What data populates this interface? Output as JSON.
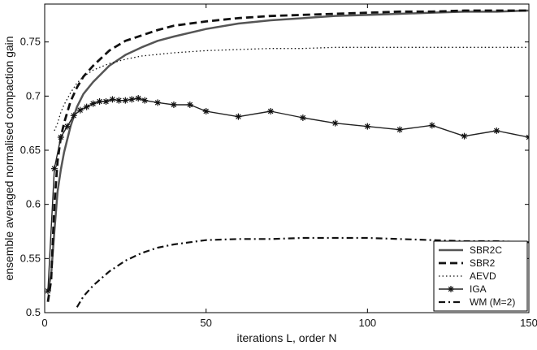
{
  "chart_data": {
    "type": "line",
    "title": "",
    "xlabel": "iterations L, order N",
    "ylabel": "ensemble averaged normalised compaction gain",
    "xlim": [
      0,
      150
    ],
    "ylim": [
      0.5,
      0.785
    ],
    "xticks": [
      0,
      50,
      100,
      150
    ],
    "yticks": [
      0.5,
      0.55,
      0.6,
      0.65,
      0.7,
      0.75
    ],
    "grid": false,
    "legend_position": "bottom-right",
    "series": [
      {
        "name": "SBR2C",
        "style": "solid",
        "x": [
          1,
          2,
          3,
          4,
          5,
          6,
          8,
          10,
          12,
          15,
          20,
          25,
          30,
          35,
          40,
          50,
          60,
          70,
          80,
          90,
          100,
          110,
          120,
          130,
          140,
          150
        ],
        "y": [
          0.52,
          0.535,
          0.575,
          0.612,
          0.632,
          0.648,
          0.672,
          0.69,
          0.702,
          0.713,
          0.728,
          0.738,
          0.745,
          0.751,
          0.755,
          0.762,
          0.767,
          0.77,
          0.772,
          0.774,
          0.775,
          0.776,
          0.777,
          0.778,
          0.778,
          0.779
        ]
      },
      {
        "name": "SBR2",
        "style": "dashed",
        "x": [
          1,
          2,
          3,
          4,
          5,
          6,
          8,
          10,
          12,
          15,
          20,
          25,
          30,
          35,
          40,
          50,
          60,
          70,
          80,
          90,
          100,
          110,
          120,
          130,
          140,
          150
        ],
        "y": [
          0.51,
          0.53,
          0.6,
          0.64,
          0.662,
          0.675,
          0.695,
          0.708,
          0.718,
          0.728,
          0.742,
          0.751,
          0.756,
          0.761,
          0.765,
          0.769,
          0.772,
          0.774,
          0.775,
          0.776,
          0.777,
          0.778,
          0.778,
          0.779,
          0.779,
          0.779
        ]
      },
      {
        "name": "AEVD",
        "style": "dotted",
        "x": [
          3,
          4,
          5,
          6,
          8,
          10,
          12,
          15,
          20,
          25,
          30,
          40,
          50,
          60,
          70,
          80,
          90,
          100,
          110,
          120,
          130,
          140,
          150
        ],
        "y": [
          0.668,
          0.675,
          0.685,
          0.692,
          0.703,
          0.712,
          0.718,
          0.724,
          0.73,
          0.734,
          0.737,
          0.74,
          0.742,
          0.743,
          0.744,
          0.744,
          0.745,
          0.745,
          0.745,
          0.745,
          0.745,
          0.745,
          0.745
        ]
      },
      {
        "name": "IGA",
        "style": "solid-star",
        "x": [
          1,
          3,
          5,
          7,
          9,
          11,
          13,
          15,
          17,
          19,
          21,
          23,
          25,
          27,
          29,
          31,
          35,
          40,
          45,
          50,
          60,
          70,
          80,
          90,
          100,
          110,
          120,
          130,
          140,
          150
        ],
        "y": [
          0.52,
          0.633,
          0.662,
          0.672,
          0.682,
          0.687,
          0.69,
          0.693,
          0.695,
          0.695,
          0.697,
          0.696,
          0.696,
          0.697,
          0.698,
          0.696,
          0.694,
          0.692,
          0.692,
          0.686,
          0.681,
          0.686,
          0.68,
          0.675,
          0.672,
          0.669,
          0.673,
          0.663,
          0.668,
          0.662
        ]
      },
      {
        "name": "WM (M=2)",
        "style": "dashdot",
        "x": [
          10,
          12,
          15,
          20,
          25,
          30,
          35,
          40,
          45,
          50,
          60,
          70,
          80,
          90,
          100,
          110,
          120,
          130,
          140,
          150
        ],
        "y": [
          0.505,
          0.515,
          0.525,
          0.538,
          0.548,
          0.555,
          0.56,
          0.563,
          0.565,
          0.567,
          0.568,
          0.568,
          0.569,
          0.569,
          0.569,
          0.568,
          0.567,
          0.566,
          0.566,
          0.565
        ]
      }
    ]
  }
}
